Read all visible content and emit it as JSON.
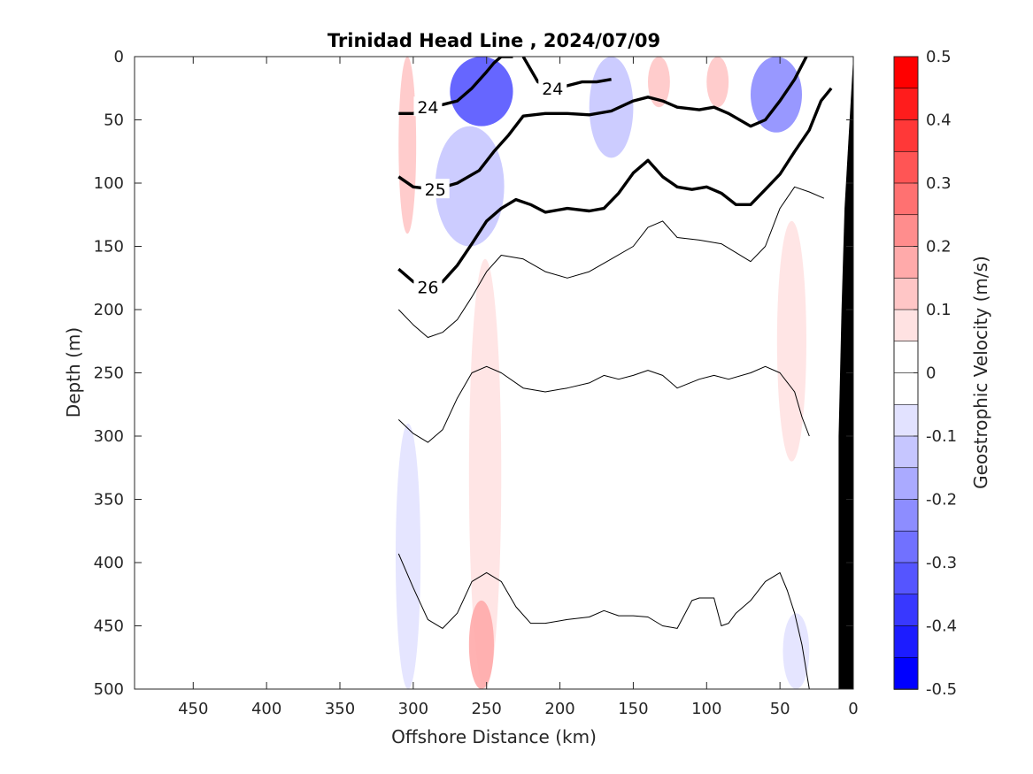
{
  "chart_data": {
    "type": "heatmap",
    "title": "Trinidad Head Line , 2024/07/09",
    "xlabel": "Offshore Distance (km)",
    "ylabel": "Depth (m)",
    "xlim": [
      490,
      0
    ],
    "ylim": [
      0,
      500
    ],
    "x_reversed": true,
    "y_reversed": true,
    "x_ticks": [
      "450",
      "400",
      "350",
      "300",
      "250",
      "200",
      "150",
      "100",
      "50",
      "0"
    ],
    "x_tick_values": [
      450,
      400,
      350,
      300,
      250,
      200,
      150,
      100,
      50,
      0
    ],
    "y_ticks": [
      "0",
      "50",
      "100",
      "150",
      "200",
      "250",
      "300",
      "350",
      "400",
      "450",
      "500"
    ],
    "y_tick_values": [
      0,
      50,
      100,
      150,
      200,
      250,
      300,
      350,
      400,
      450,
      500
    ],
    "grid": false,
    "colorbar": {
      "label": "Geostrophic Velocity (m/s)",
      "range": [
        -0.5,
        0.5
      ],
      "tick_values": [
        0.5,
        0.4,
        0.3,
        0.2,
        0.1,
        0,
        -0.1,
        -0.2,
        -0.3,
        -0.4,
        -0.5
      ],
      "tick_labels": [
        "0.5",
        "0.4",
        "0.3",
        "0.2",
        "0.1",
        "0",
        "-0.1",
        "-0.2",
        "-0.3",
        "-0.4",
        "-0.5"
      ],
      "levels": [
        {
          "lo": 0.45,
          "hi": 0.5,
          "color": "#ff0000"
        },
        {
          "lo": 0.4,
          "hi": 0.45,
          "color": "#ff1c1c"
        },
        {
          "lo": 0.35,
          "hi": 0.4,
          "color": "#ff3838"
        },
        {
          "lo": 0.3,
          "hi": 0.35,
          "color": "#ff5555"
        },
        {
          "lo": 0.25,
          "hi": 0.3,
          "color": "#ff7171"
        },
        {
          "lo": 0.2,
          "hi": 0.25,
          "color": "#ff8d8d"
        },
        {
          "lo": 0.15,
          "hi": 0.2,
          "color": "#ffaaaa"
        },
        {
          "lo": 0.1,
          "hi": 0.15,
          "color": "#ffc6c6"
        },
        {
          "lo": 0.05,
          "hi": 0.1,
          "color": "#ffe2e2"
        },
        {
          "lo": 0.0,
          "hi": 0.05,
          "color": "#ffffff"
        },
        {
          "lo": -0.05,
          "hi": 0.0,
          "color": "#ffffff"
        },
        {
          "lo": -0.1,
          "hi": -0.05,
          "color": "#e2e2ff"
        },
        {
          "lo": -0.15,
          "hi": -0.1,
          "color": "#c6c6ff"
        },
        {
          "lo": -0.2,
          "hi": -0.15,
          "color": "#aaaaff"
        },
        {
          "lo": -0.25,
          "hi": -0.2,
          "color": "#8d8dff"
        },
        {
          "lo": -0.3,
          "hi": -0.25,
          "color": "#7171ff"
        },
        {
          "lo": -0.35,
          "hi": -0.3,
          "color": "#5555ff"
        },
        {
          "lo": -0.4,
          "hi": -0.35,
          "color": "#3838ff"
        },
        {
          "lo": -0.45,
          "hi": -0.4,
          "color": "#1c1cff"
        },
        {
          "lo": -0.5,
          "hi": -0.45,
          "color": "#0000ff"
        }
      ]
    },
    "velocity_patches": [
      {
        "x": [
          310,
          298
        ],
        "depth": [
          0,
          140
        ],
        "value": 0.1
      },
      {
        "x": [
          275,
          232
        ],
        "depth": [
          0,
          55
        ],
        "value": -0.35
      },
      {
        "x": [
          285,
          238
        ],
        "depth": [
          55,
          150
        ],
        "value": -0.12
      },
      {
        "x": [
          180,
          150
        ],
        "depth": [
          0,
          80
        ],
        "value": -0.15
      },
      {
        "x": [
          140,
          125
        ],
        "depth": [
          0,
          40
        ],
        "value": 0.1
      },
      {
        "x": [
          100,
          85
        ],
        "depth": [
          0,
          40
        ],
        "value": 0.1
      },
      {
        "x": [
          70,
          35
        ],
        "depth": [
          0,
          60
        ],
        "value": -0.25
      },
      {
        "x": [
          262,
          240
        ],
        "depth": [
          160,
          500
        ],
        "value": 0.08
      },
      {
        "x": [
          262,
          245
        ],
        "depth": [
          430,
          500
        ],
        "value": 0.15
      },
      {
        "x": [
          52,
          32
        ],
        "depth": [
          130,
          320
        ],
        "value": 0.08
      },
      {
        "x": [
          312,
          295
        ],
        "depth": [
          290,
          500
        ],
        "value": -0.08
      },
      {
        "x": [
          48,
          30
        ],
        "depth": [
          440,
          500
        ],
        "value": -0.1
      }
    ],
    "density_contours": [
      {
        "level": "24",
        "bold": true,
        "x": [
          310,
          300,
          290,
          280,
          270,
          260,
          250,
          245,
          240,
          232
        ],
        "depth": [
          45,
          45,
          40,
          38,
          35,
          25,
          12,
          5,
          0,
          0
        ]
      },
      {
        "level": "24",
        "bold": true,
        "x": [
          225,
          215,
          205,
          195,
          185,
          175,
          165
        ],
        "depth": [
          0,
          20,
          25,
          23,
          20,
          20,
          18
        ]
      },
      {
        "level": "25",
        "bold": true,
        "x": [
          310,
          300,
          285,
          270,
          255,
          245,
          235,
          225,
          210,
          195,
          180,
          165,
          150,
          140,
          130,
          120,
          105,
          95,
          85,
          70,
          60,
          50,
          40,
          32
        ],
        "depth": [
          95,
          103,
          105,
          100,
          90,
          75,
          62,
          47,
          45,
          45,
          46,
          43,
          35,
          32,
          35,
          40,
          42,
          40,
          45,
          55,
          50,
          35,
          18,
          0
        ]
      },
      {
        "level": "26",
        "bold": true,
        "x": [
          310,
          300,
          290,
          280,
          270,
          260,
          250,
          240,
          230,
          220,
          210,
          195,
          180,
          170,
          160,
          150,
          140,
          130,
          120,
          110,
          100,
          90,
          80,
          70,
          60,
          50,
          40,
          30,
          22,
          15
        ],
        "depth": [
          168,
          178,
          182,
          178,
          165,
          148,
          130,
          120,
          113,
          117,
          123,
          120,
          122,
          120,
          108,
          92,
          82,
          95,
          103,
          105,
          103,
          108,
          117,
          117,
          105,
          93,
          75,
          58,
          35,
          25
        ]
      },
      {
        "level": "",
        "bold": false,
        "x": [
          310,
          300,
          290,
          280,
          270,
          260,
          250,
          240,
          225,
          210,
          195,
          180,
          165,
          150,
          140,
          130,
          120,
          105,
          90,
          80,
          70,
          60,
          50,
          40,
          30,
          20
        ],
        "depth": [
          200,
          212,
          222,
          218,
          208,
          190,
          170,
          157,
          160,
          170,
          175,
          170,
          160,
          150,
          135,
          130,
          143,
          145,
          148,
          155,
          162,
          150,
          120,
          103,
          107,
          112
        ]
      },
      {
        "level": "",
        "bold": false,
        "x": [
          310,
          300,
          290,
          280,
          270,
          260,
          250,
          240,
          225,
          210,
          195,
          180,
          170,
          160,
          150,
          140,
          130,
          120,
          105,
          95,
          85,
          70,
          60,
          50,
          40,
          35,
          30
        ],
        "depth": [
          287,
          298,
          305,
          295,
          270,
          250,
          245,
          250,
          262,
          265,
          262,
          258,
          252,
          255,
          252,
          248,
          252,
          262,
          255,
          252,
          255,
          250,
          245,
          250,
          265,
          285,
          300
        ]
      },
      {
        "level": "",
        "bold": false,
        "x": [
          310,
          300,
          290,
          280,
          270,
          260,
          250,
          240,
          230,
          220,
          210,
          195,
          180,
          170,
          160,
          150,
          140,
          130,
          120,
          110,
          105,
          95,
          90,
          85,
          80,
          70,
          60,
          50,
          45,
          40,
          35,
          30
        ],
        "depth": [
          393,
          420,
          445,
          452,
          440,
          415,
          408,
          415,
          435,
          448,
          448,
          445,
          443,
          438,
          442,
          442,
          443,
          450,
          452,
          430,
          428,
          428,
          450,
          448,
          440,
          430,
          415,
          408,
          422,
          440,
          465,
          500
        ]
      }
    ],
    "seafloor": {
      "x": [
        10,
        10,
        8,
        6,
        3,
        0,
        0
      ],
      "depth": [
        500,
        300,
        200,
        120,
        60,
        0,
        500
      ],
      "color": "#000000"
    }
  }
}
